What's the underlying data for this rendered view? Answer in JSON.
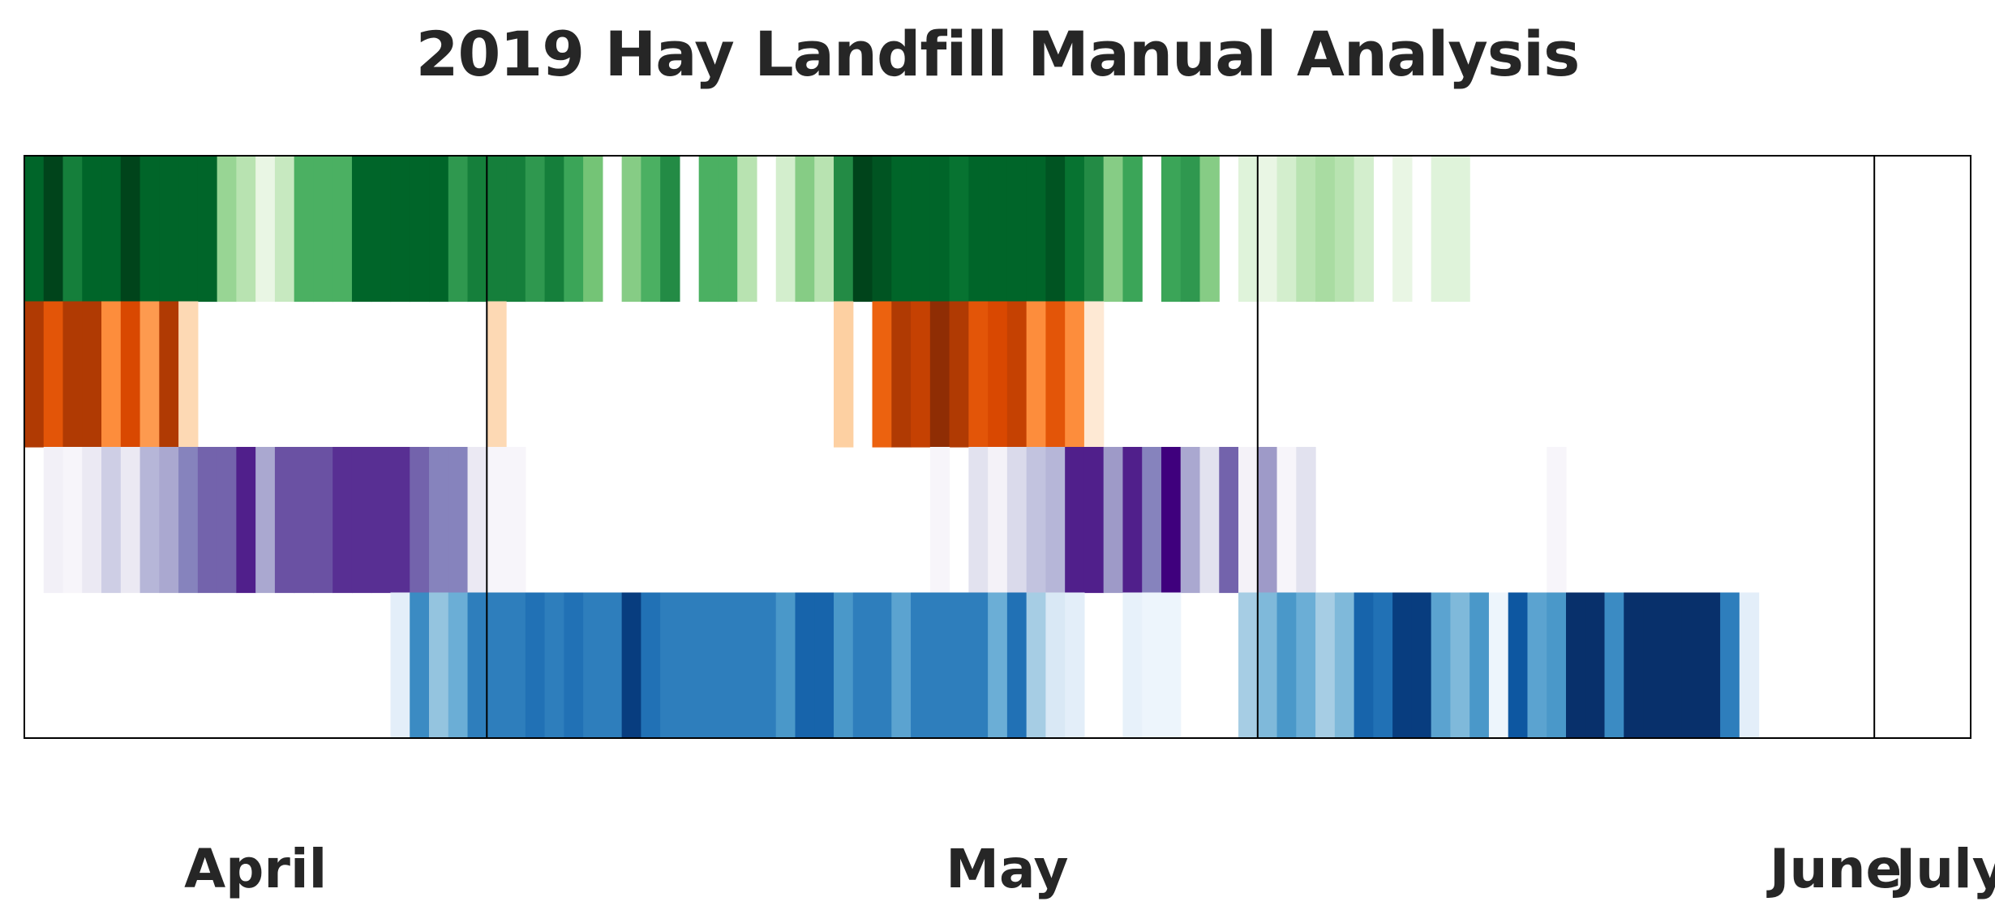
{
  "chart_data": {
    "type": "heatmap",
    "title": "2019 Hay Landfill Manual Analysis",
    "xlabel": "",
    "ylabel": "",
    "grid": false,
    "legend": "none",
    "x_range": [
      "2019-03-26",
      "2019-07-05"
    ],
    "month_labels": [
      {
        "label": "April",
        "date": "2019-04-07"
      },
      {
        "label": "May",
        "date": "2019-05-16"
      },
      {
        "label": "June",
        "date": "2019-06-28"
      },
      {
        "label": "July",
        "date": "2019-07-04"
      }
    ],
    "month_boundaries": [
      "2019-04-19",
      "2019-05-29",
      "2019-06-30"
    ],
    "series": [
      {
        "colormap": "Greens",
        "start": "2019-03-26",
        "values": [
          0.9,
          1.0,
          0.8,
          0.9,
          0.9,
          1.0,
          0.9,
          0.9,
          0.9,
          0.9,
          0.4,
          0.3,
          0.1,
          0.25,
          0.6,
          0.6,
          0.6,
          0.9,
          0.9,
          0.9,
          0.9,
          0.9,
          0.7,
          0.8,
          0.8,
          0.8,
          0.7,
          0.8,
          0.65,
          0.5,
          0,
          0.45,
          0.6,
          0.75,
          0,
          0.6,
          0.6,
          0.3,
          0,
          0.2,
          0.45,
          0.3,
          0.75,
          1.0,
          0.95,
          0.9,
          0.9,
          0.9,
          0.85,
          0.9,
          0.9,
          0.9,
          0.9,
          0.95,
          0.85,
          0.75,
          0.45,
          0.65,
          0,
          0.65,
          0.7,
          0.45,
          0,
          0.15,
          0.1,
          0.2,
          0.3,
          0.35,
          0.3,
          0.2,
          0,
          0.1,
          0,
          0.15,
          0.15,
          0,
          0,
          0,
          0,
          0,
          0,
          0,
          0,
          0,
          0,
          0,
          0,
          0,
          0,
          0,
          0,
          0,
          0
        ]
      },
      {
        "colormap": "Oranges",
        "start": "2019-03-26",
        "values": [
          0.85,
          0.7,
          0.85,
          0.85,
          0.5,
          0.75,
          0.45,
          0.85,
          0.2,
          0,
          0,
          0,
          0,
          0,
          0,
          0,
          0,
          0,
          0,
          0,
          0,
          0,
          0,
          0,
          0.2,
          0,
          0,
          0,
          0,
          0,
          0,
          0,
          0,
          0,
          0,
          0,
          0,
          0,
          0,
          0,
          0,
          0,
          0.25,
          0,
          0.65,
          0.85,
          0.8,
          0.95,
          0.85,
          0.7,
          0.75,
          0.8,
          0.5,
          0.7,
          0.5,
          0.1,
          0,
          0,
          0,
          0,
          0,
          0,
          0,
          0,
          0,
          0,
          0,
          0,
          0,
          0,
          0,
          0,
          0,
          0,
          0,
          0,
          0,
          0,
          0,
          0,
          0,
          0,
          0,
          0,
          0,
          0,
          0,
          0,
          0,
          0,
          0,
          0,
          0
        ]
      },
      {
        "colormap": "Purples",
        "start": "2019-03-26",
        "values": [
          0,
          0.1,
          0.05,
          0.15,
          0.3,
          0.15,
          0.4,
          0.45,
          0.6,
          0.7,
          0.7,
          0.9,
          0.45,
          0.75,
          0.75,
          0.75,
          0.85,
          0.85,
          0.85,
          0.85,
          0.7,
          0.6,
          0.6,
          0.15,
          0.05,
          0.05,
          0,
          0,
          0,
          0,
          0,
          0,
          0,
          0,
          0,
          0,
          0,
          0,
          0,
          0,
          0,
          0,
          0,
          0,
          0,
          0,
          0,
          0.05,
          0,
          0.2,
          0.08,
          0.25,
          0.35,
          0.4,
          0.9,
          0.9,
          0.5,
          0.9,
          0.6,
          1.0,
          0.45,
          0.2,
          0.7,
          0.08,
          0.5,
          0.05,
          0.2,
          0,
          0,
          0,
          0,
          0,
          0,
          0,
          0,
          0,
          0,
          0,
          0,
          0.05,
          0,
          0,
          0,
          0,
          0,
          0,
          0,
          0,
          0,
          0,
          0,
          0,
          0
        ]
      },
      {
        "colormap": "Blues",
        "start": "2019-03-26",
        "values": [
          0,
          0,
          0,
          0,
          0,
          0,
          0,
          0,
          0,
          0,
          0,
          0,
          0,
          0,
          0,
          0,
          0,
          0,
          0,
          0.1,
          0.65,
          0.4,
          0.5,
          0.7,
          0.7,
          0.7,
          0.75,
          0.7,
          0.75,
          0.7,
          0.7,
          0.95,
          0.75,
          0.7,
          0.7,
          0.7,
          0.7,
          0.7,
          0.7,
          0.6,
          0.8,
          0.8,
          0.6,
          0.7,
          0.7,
          0.55,
          0.7,
          0.7,
          0.7,
          0.7,
          0.5,
          0.75,
          0.35,
          0.15,
          0.1,
          0,
          0,
          0.08,
          0.05,
          0.05,
          0,
          0,
          0,
          0.35,
          0.45,
          0.6,
          0.5,
          0.35,
          0.45,
          0.8,
          0.75,
          0.95,
          0.95,
          0.55,
          0.45,
          0.6,
          0.05,
          0.85,
          0.55,
          0.6,
          1.0,
          1.0,
          0.65,
          1.0,
          1.0,
          1.0,
          1.0,
          1.0,
          0.7,
          0.1,
          0
        ]
      }
    ]
  }
}
